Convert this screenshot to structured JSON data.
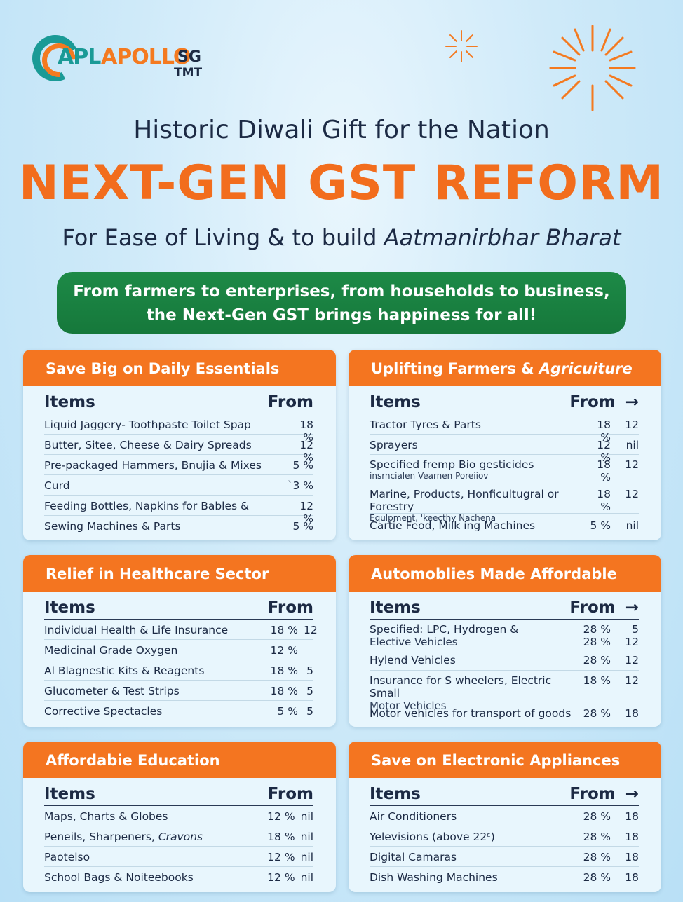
{
  "brand": {
    "part1": "APL",
    "part2": "APOLLO",
    "part3": "SG",
    "part4": "TMT",
    "colors": {
      "teal": "#1a9a96",
      "orange": "#f47a20",
      "navy": "#1c2a44"
    }
  },
  "headline": {
    "line1": "Historic Diwali Gift for the Nation",
    "line2": "NEXT-GEN GST REFORM",
    "line3_plain": "For Ease of Living & to build ",
    "line3_italic": "Aatmanirbhar Bharat"
  },
  "banner": {
    "line1": "From farmers to enterprises, from households to business,",
    "line2": "the Next-Gen GST brings happiness for all!"
  },
  "labels": {
    "items": "Items",
    "from": "From",
    "arrow": "→"
  },
  "cards": {
    "daily": {
      "title": "Save Big on Daily Essentials",
      "rows": [
        {
          "name": "Liquid Jaggery- Toothpaste Toilet Spap",
          "rate": "18 %"
        },
        {
          "name": "Butter, Sitee, Cheese & Dairy Spreads",
          "rate": "12 %"
        },
        {
          "name": "Pre-packaged Hammers, Bnujia & Mixes",
          "rate": "5 %"
        },
        {
          "name": "Curd",
          "rate": "`3 %"
        },
        {
          "name": "Feeding Bottles, Napkins for Bables &",
          "rate": "12 %"
        },
        {
          "name": "Sewing Machines & Parts",
          "rate": "5 %"
        }
      ]
    },
    "farm": {
      "title_plain": "Uplifting Farmers & ",
      "title_italic": "Agricuiture",
      "rows": [
        {
          "name": "Tractor Tyres & Parts",
          "rate": "18 %",
          "new": "12"
        },
        {
          "name": "Sprayers",
          "rate": "12 %",
          "new": "nil"
        },
        {
          "name": "Specified fremp Bio gesticides",
          "sub": "insrncialen Vearnen Poreiiov",
          "rate": "18 %",
          "new": "12"
        },
        {
          "name": "Marine, Products, Honficultugral or Forestry",
          "sub": "Equlpment, 'keecthy Nachena",
          "rate": "18 %",
          "new": "12"
        },
        {
          "name": "Cartie Feod, Milk ing Machines",
          "rate": "5 %",
          "new": "nil"
        }
      ]
    },
    "health": {
      "title": "Relief in Healthcare Sector",
      "rows": [
        {
          "name": "Individual Health & Life Insurance",
          "rate": "18 %",
          "new": "12"
        },
        {
          "name": "Medicinal Grade Oxygen",
          "rate": "12 %",
          "new": ""
        },
        {
          "name": "Al Blagnestic Kits & Reagents",
          "rate": "18 %",
          "new": "5"
        },
        {
          "name": "Glucometer & Test Strips",
          "rate": "18 %",
          "new": "5"
        },
        {
          "name": "Corrective Spectacles",
          "rate": "5 %",
          "new": "5"
        }
      ]
    },
    "auto": {
      "title": "Automoblies Made Affordable",
      "rows": [
        {
          "name": "Specified: LPC, Hydrogen &",
          "sub": "Elective Vehicles",
          "rate": "28 %",
          "rate2": "28 %",
          "new": "5",
          "new2": "12"
        },
        {
          "name": "Hylend Vehicles",
          "rate": "28 %",
          "new": "12"
        },
        {
          "name": "Insurance for S wheelers, Electric Small",
          "sub": "Motor Vehicles",
          "rate": "18 %",
          "new": "12"
        },
        {
          "name": "Motor vehicles for transport of goods",
          "rate": "28 %",
          "new": "18"
        }
      ]
    },
    "edu": {
      "title": "Affordabie Education",
      "rows": [
        {
          "name": "Maps, Charts & Globes",
          "rate": "12 %",
          "new": "nil"
        },
        {
          "name_plain": "Peneils, Sharpeners, ",
          "name_italic": "Cravons",
          "rate": "18 %",
          "new": "nil"
        },
        {
          "name": "Paotelso",
          "rate": "12 %",
          "new": "nil"
        },
        {
          "name": "School Bags & Noiteebooks",
          "rate": "12 %",
          "new": "nil"
        }
      ]
    },
    "elec": {
      "title": "Save on Electronic Appliances",
      "rows": [
        {
          "name": "Air Conditioners",
          "rate": "28 %",
          "new": "18"
        },
        {
          "name": "Yelevisions (above 22ᵋ)",
          "rate": "28 %",
          "new": "18"
        },
        {
          "name": "Digital Camaras",
          "rate": "28 %",
          "new": "18"
        },
        {
          "name": "Dish Washing Machines",
          "rate": "28 %",
          "new": "18"
        }
      ]
    }
  }
}
